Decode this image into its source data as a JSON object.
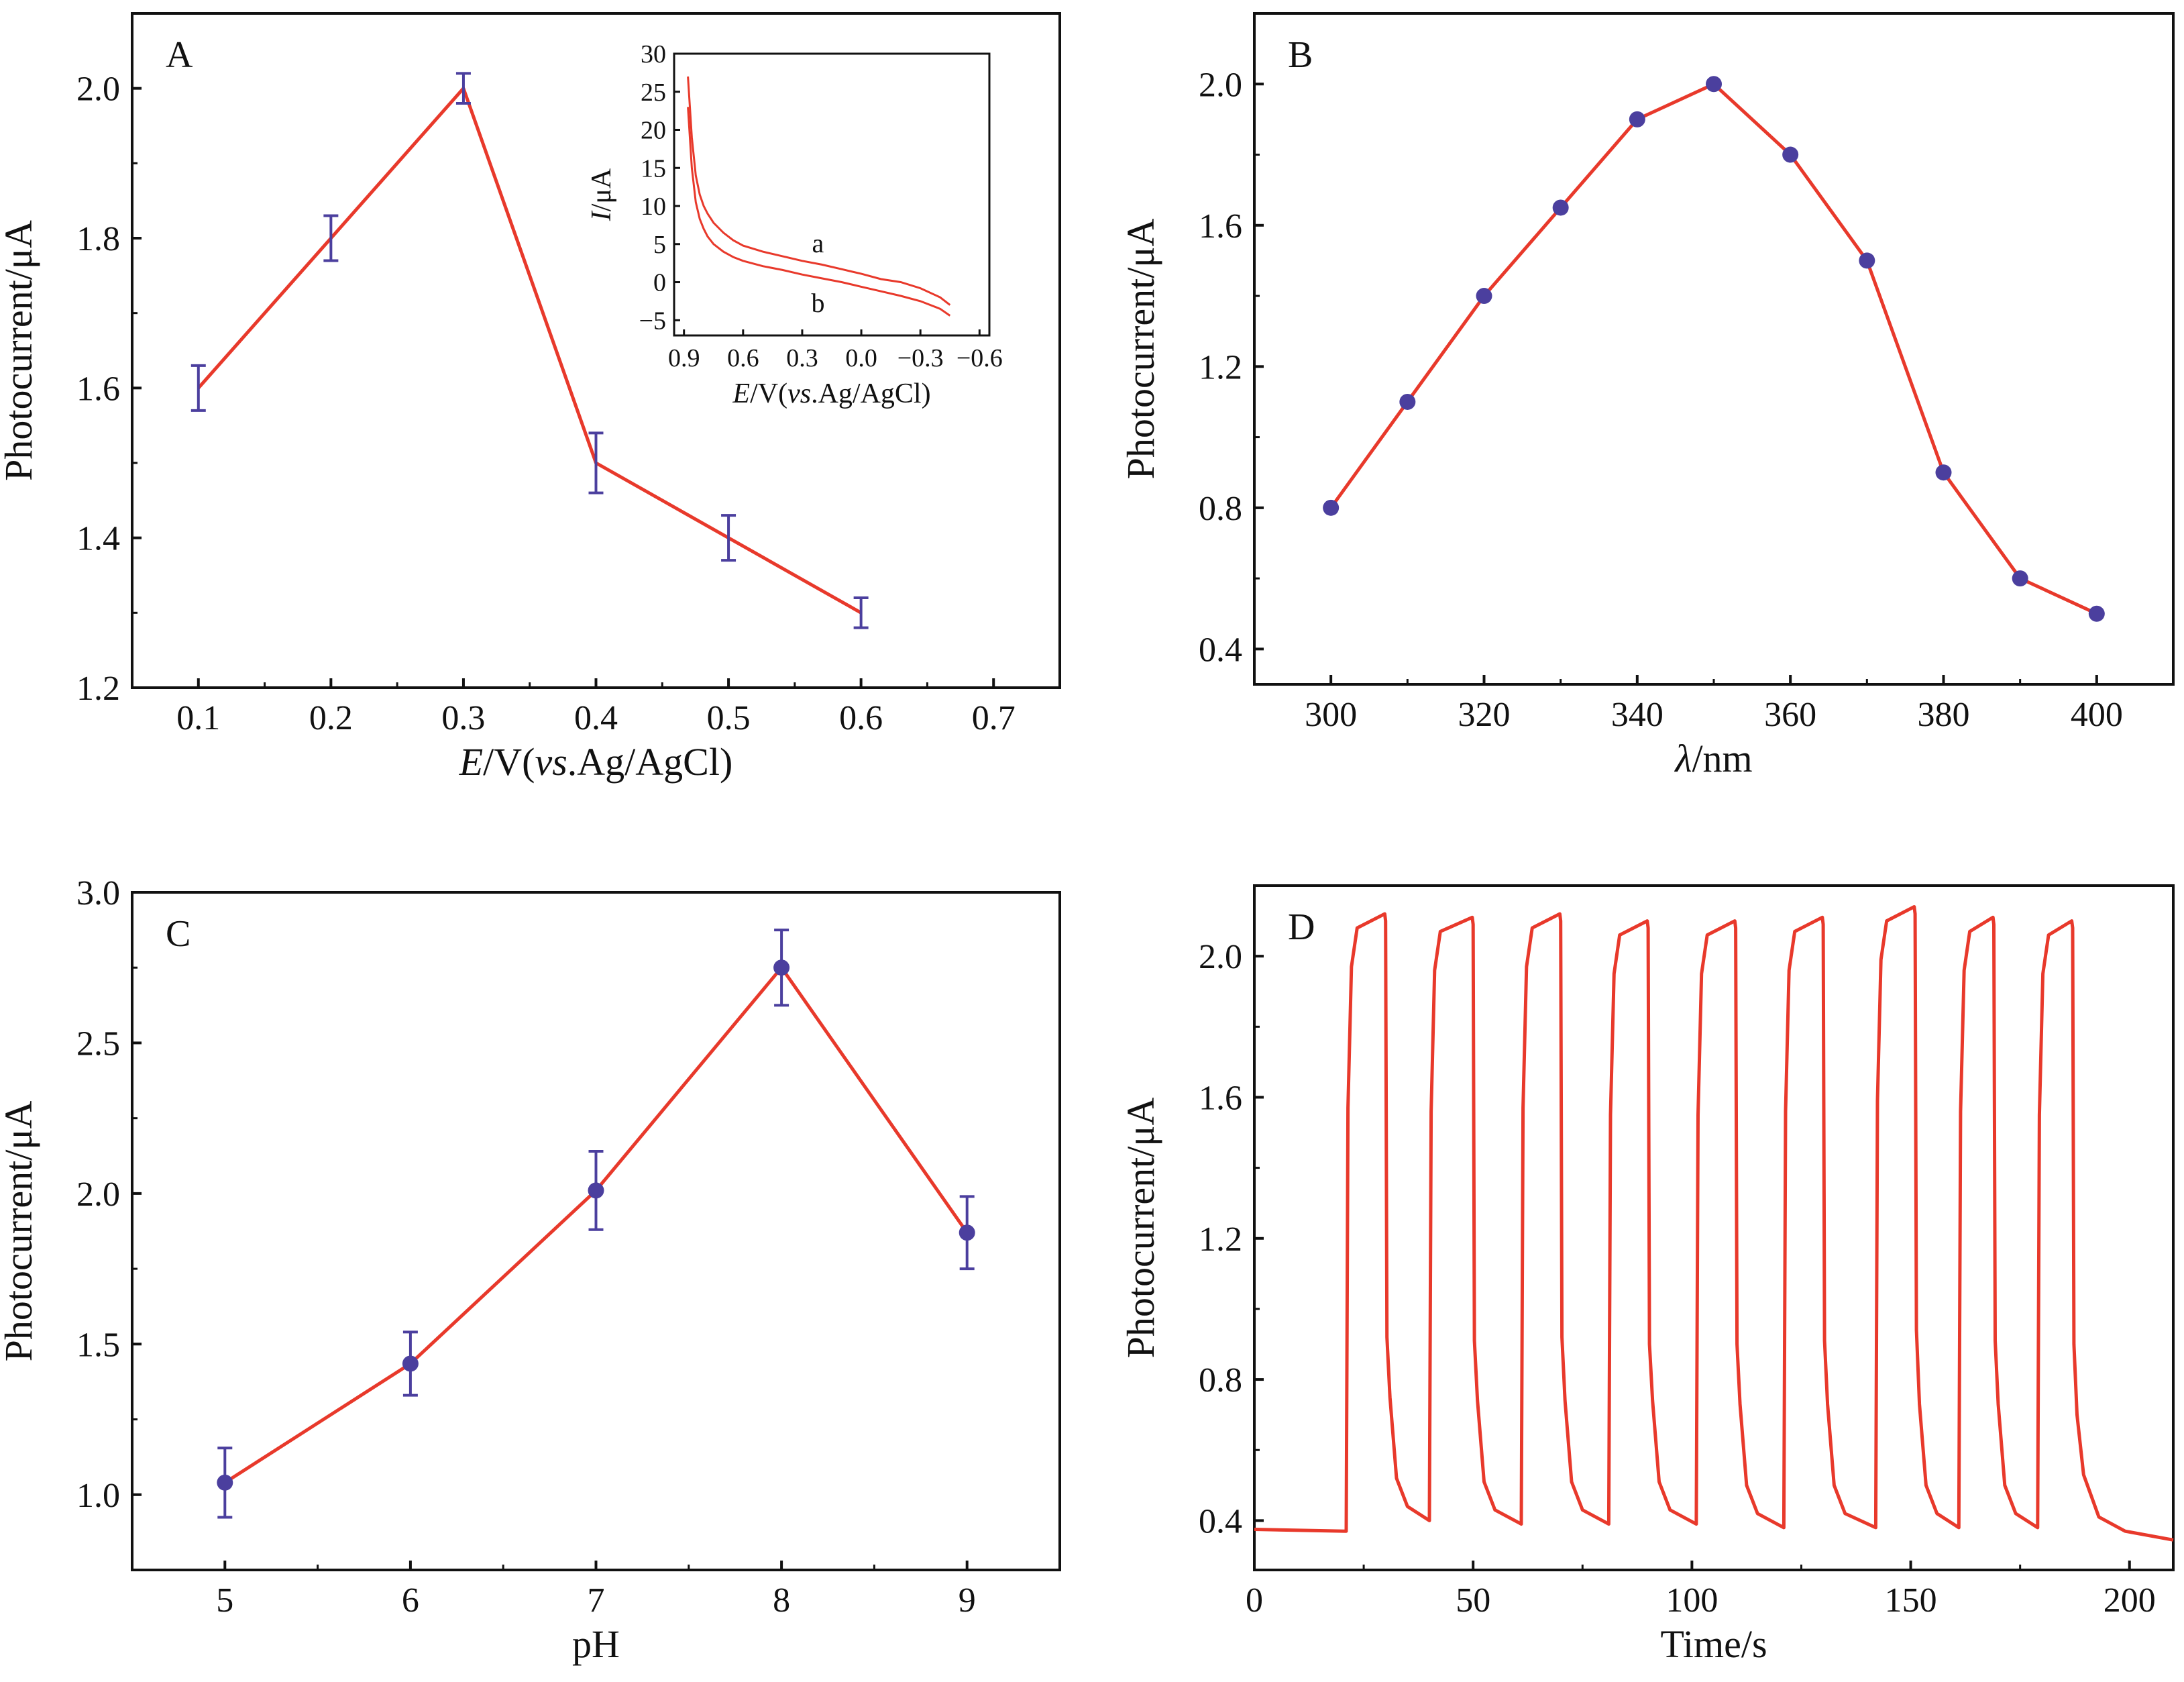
{
  "colors": {
    "line": "#e8392b",
    "marker": "#4b3f9e",
    "axis": "#111111"
  },
  "chart_data": [
    {
      "panel": "A",
      "type": "line",
      "xlabel": {
        "italic": "E",
        "rest": "/V(",
        "italic2": "vs",
        "rest2": ".Ag/AgCl)"
      },
      "ylabel": "Photocurrent/μA",
      "xlim": [
        0.05,
        0.75
      ],
      "ylim": [
        1.2,
        2.1
      ],
      "xticks": [
        0.1,
        0.2,
        0.3,
        0.4,
        0.5,
        0.6,
        0.7
      ],
      "yticks": [
        1.2,
        1.4,
        1.6,
        1.8,
        2.0
      ],
      "x": [
        0.1,
        0.2,
        0.3,
        0.4,
        0.5,
        0.6
      ],
      "y": [
        1.6,
        1.8,
        2.0,
        1.5,
        1.4,
        1.3
      ],
      "err": [
        0.03,
        0.03,
        0.02,
        0.04,
        0.03,
        0.02
      ],
      "markers": false,
      "inset": {
        "type": "line",
        "xlabel": {
          "italic": "E",
          "rest": "/V(",
          "italic2": "vs",
          "rest2": ".Ag/AgCl)"
        },
        "ylabel": {
          "italic": "I",
          "rest": "/μA"
        },
        "xlim": [
          0.95,
          -0.65
        ],
        "ylim": [
          -7,
          30
        ],
        "xticks": [
          0.9,
          0.6,
          0.3,
          0.0,
          -0.3,
          -0.6
        ],
        "xtick_labels": [
          "0.9",
          "0.6",
          "0.3",
          "0.0",
          "−0.3",
          "−0.6"
        ],
        "yticks": [
          -5,
          0,
          5,
          10,
          15,
          20,
          25,
          30
        ],
        "yticks_labels": [
          "−5",
          "0",
          "5",
          "10",
          "15",
          "20",
          "25",
          "30"
        ],
        "series": [
          {
            "name": "a",
            "x": [
              0.88,
              0.86,
              0.84,
              0.82,
              0.8,
              0.78,
              0.75,
              0.7,
              0.65,
              0.6,
              0.5,
              0.4,
              0.3,
              0.2,
              0.1,
              0.0,
              -0.1,
              -0.2,
              -0.3,
              -0.4,
              -0.45
            ],
            "y": [
              27,
              19,
              14,
              11.5,
              10,
              9,
              7.8,
              6.5,
              5.5,
              4.8,
              4.0,
              3.4,
              2.8,
              2.3,
              1.7,
              1.1,
              0.4,
              0.0,
              -0.8,
              -2.0,
              -3.0
            ]
          },
          {
            "name": "b",
            "x": [
              0.88,
              0.86,
              0.84,
              0.82,
              0.8,
              0.78,
              0.75,
              0.7,
              0.65,
              0.6,
              0.5,
              0.4,
              0.3,
              0.2,
              0.1,
              0.0,
              -0.1,
              -0.2,
              -0.3,
              -0.4,
              -0.45
            ],
            "y": [
              23,
              15,
              10.5,
              8.3,
              7,
              6,
              5,
              4,
              3.3,
              2.8,
              2.1,
              1.6,
              1.0,
              0.5,
              0.0,
              -0.6,
              -1.2,
              -1.8,
              -2.5,
              -3.5,
              -4.4
            ]
          }
        ]
      }
    },
    {
      "panel": "B",
      "type": "line",
      "xlabel": {
        "italic": "λ",
        "rest": "/nm"
      },
      "ylabel": "Photocurrent/μA",
      "xlim": [
        290,
        410
      ],
      "ylim": [
        0.3,
        2.2
      ],
      "xticks": [
        300,
        320,
        340,
        360,
        380,
        400
      ],
      "yticks": [
        0.4,
        0.8,
        1.2,
        1.6,
        2.0
      ],
      "x": [
        300,
        310,
        320,
        330,
        340,
        350,
        360,
        370,
        380,
        390,
        400
      ],
      "y": [
        0.8,
        1.1,
        1.4,
        1.65,
        1.9,
        2.0,
        1.8,
        1.5,
        0.9,
        0.6,
        0.5
      ],
      "markers": true
    },
    {
      "panel": "C",
      "type": "line",
      "xlabel": {
        "italic": "",
        "rest": "pH"
      },
      "ylabel": "Photocurrent/μA",
      "xlim": [
        4.5,
        9.5
      ],
      "ylim": [
        0.75,
        3.0
      ],
      "xticks": [
        5,
        6,
        7,
        8,
        9
      ],
      "yticks": [
        1.0,
        1.5,
        2.0,
        2.5,
        3.0
      ],
      "x": [
        5,
        6,
        7,
        8,
        9
      ],
      "y": [
        1.04,
        1.435,
        2.01,
        2.75,
        1.87
      ],
      "err": [
        0.115,
        0.105,
        0.13,
        0.125,
        0.12
      ],
      "markers": true
    },
    {
      "panel": "D",
      "type": "line",
      "xlabel": {
        "italic": "",
        "rest": "Time/s"
      },
      "ylabel": "Photocurrent/μA",
      "xlim": [
        0,
        210
      ],
      "ylim": [
        0.26,
        2.2
      ],
      "xticks": [
        0,
        50,
        100,
        150,
        200
      ],
      "yticks": [
        0.4,
        0.8,
        1.2,
        1.6,
        2.0
      ],
      "baseline": 0.37,
      "on_off_cycles": [
        {
          "on": 21,
          "off": 30,
          "peak": 2.12,
          "low": 0.4
        },
        {
          "on": 40,
          "off": 50,
          "peak": 2.11,
          "low": 0.39
        },
        {
          "on": 61,
          "off": 70,
          "peak": 2.12,
          "low": 0.39
        },
        {
          "on": 81,
          "off": 90,
          "peak": 2.1,
          "low": 0.39
        },
        {
          "on": 101,
          "off": 110,
          "peak": 2.1,
          "low": 0.38
        },
        {
          "on": 121,
          "off": 130,
          "peak": 2.11,
          "low": 0.38
        },
        {
          "on": 142,
          "off": 151,
          "peak": 2.14,
          "low": 0.38
        },
        {
          "on": 161,
          "off": 169,
          "peak": 2.11,
          "low": 0.38
        },
        {
          "on": 179,
          "off": 187,
          "peak": 2.1,
          "low": 0.35
        }
      ],
      "end_time": 210,
      "markers": false
    }
  ]
}
